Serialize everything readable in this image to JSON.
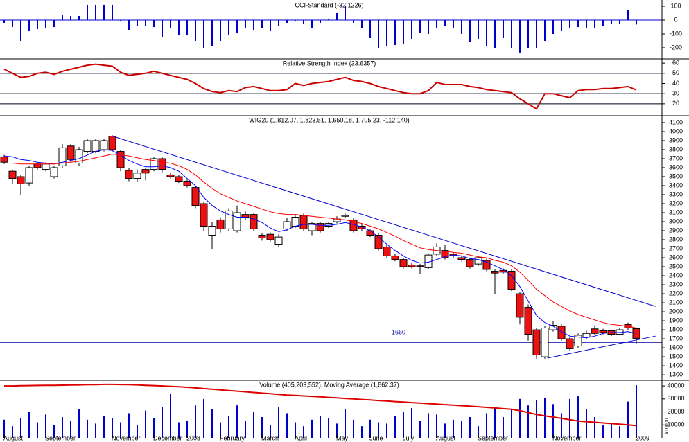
{
  "chart_data": [
    {
      "type": "bar",
      "title": "CCI-Standard (-32.1226)",
      "color": "#0000cc",
      "ylim": [
        -275,
        135
      ],
      "yticks": [
        -200,
        -100,
        0,
        100
      ],
      "values": [
        -20,
        -50,
        -150,
        -80,
        -65,
        -60,
        -50,
        40,
        30,
        30,
        110,
        110,
        110,
        110,
        -10,
        -70,
        -40,
        -40,
        -50,
        -120,
        -60,
        -110,
        -110,
        -150,
        -200,
        -190,
        -150,
        -110,
        -90,
        -60,
        -70,
        -60,
        -80,
        -40,
        -20,
        -10,
        -30,
        -60,
        -20,
        10,
        50,
        100,
        -20,
        -60,
        -130,
        -200,
        -190,
        -180,
        -170,
        -140,
        -90,
        -100,
        -60,
        -40,
        -60,
        -100,
        -160,
        -140,
        -190,
        -200,
        -130,
        -200,
        -240,
        -200,
        -200,
        -150,
        -100,
        -80,
        -60,
        -50,
        -60,
        -60,
        -40,
        -30,
        -30,
        70,
        -32.1226
      ]
    },
    {
      "type": "line",
      "title": "Relative Strength Index (33.6357)",
      "color": "#cc0000",
      "ylim": [
        9,
        63.5
      ],
      "yticks": [
        20,
        30,
        40,
        50,
        60
      ],
      "levels": [
        20,
        30,
        50
      ],
      "values": [
        54,
        50,
        46,
        47,
        50,
        51,
        49,
        52,
        54,
        56,
        58,
        59,
        58,
        57,
        51,
        48,
        49,
        50,
        52,
        50,
        48,
        46,
        44,
        40,
        35,
        32,
        31,
        33,
        32,
        36,
        37,
        35,
        33,
        33,
        34,
        40,
        38,
        40,
        41,
        42,
        44,
        46,
        43,
        42,
        40,
        37,
        35,
        33,
        31,
        30,
        30,
        33,
        41,
        39,
        39,
        39,
        37,
        36,
        34,
        33,
        32,
        31,
        25,
        20,
        15,
        30,
        30,
        28,
        26,
        33,
        34,
        34,
        35,
        35,
        36,
        37,
        33.6357
      ]
    },
    {
      "type": "candlestick",
      "title": "WIG20 (1,812.07, 1,823.51, 1,650.18, 1,705.23, -112.140)",
      "up_color": "#ffffff",
      "down_color": "#ee1111",
      "ylim": [
        1247,
        4169
      ],
      "yticks": [
        1300,
        1400,
        1500,
        1600,
        1700,
        1800,
        1900,
        2000,
        2100,
        2200,
        2300,
        2400,
        2500,
        2600,
        2700,
        2800,
        2900,
        3000,
        3100,
        3200,
        3300,
        3400,
        3500,
        3600,
        3700,
        3800,
        3900,
        4000,
        4100
      ],
      "open": [
        3720,
        3560,
        3500,
        3430,
        3640,
        3580,
        3500,
        3620,
        3840,
        3650,
        3780,
        3780,
        3800,
        3950,
        3780,
        3570,
        3480,
        3580,
        3580,
        3700,
        3520,
        3500,
        3450,
        3380,
        3200,
        2850,
        3020,
        2920,
        2900,
        3080,
        3080,
        2850,
        2860,
        2750,
        2920,
        2950,
        3070,
        2900,
        2980,
        2950,
        3000,
        3060,
        3020,
        2950,
        2900,
        2850,
        2720,
        2620,
        2580,
        2520,
        2510,
        2490,
        2640,
        2680,
        2640,
        2600,
        2580,
        2530,
        2570,
        2450,
        2460,
        2450,
        2200,
        2050,
        1800,
        1500,
        1800,
        1840,
        1700,
        1620,
        1720,
        1810,
        1790,
        1790,
        1750,
        1860,
        1812.07
      ],
      "high": [
        3740,
        3580,
        3520,
        3620,
        3660,
        3660,
        3620,
        3860,
        3860,
        3830,
        3920,
        3920,
        3920,
        3960,
        3800,
        3600,
        3580,
        3600,
        3720,
        3720,
        3540,
        3520,
        3470,
        3400,
        3220,
        3000,
        3050,
        3150,
        3180,
        3120,
        3100,
        2870,
        2880,
        2860,
        3040,
        3080,
        3090,
        3000,
        3000,
        3000,
        3060,
        3090,
        3040,
        2970,
        2920,
        2870,
        2740,
        2640,
        2600,
        2540,
        2530,
        2650,
        2760,
        2740,
        2660,
        2620,
        2600,
        2620,
        2590,
        2470,
        2480,
        2470,
        2220,
        2080,
        1820,
        1840,
        1900,
        1860,
        1720,
        1760,
        1790,
        1850,
        1810,
        1800,
        1820,
        1880,
        1823.51
      ],
      "low": [
        3640,
        3420,
        3300,
        3400,
        3580,
        3560,
        3480,
        3600,
        3660,
        3620,
        3760,
        3760,
        3780,
        3780,
        3560,
        3450,
        3440,
        3460,
        3560,
        3550,
        3480,
        3430,
        3380,
        3150,
        2900,
        2700,
        2880,
        2900,
        2880,
        3020,
        2900,
        2790,
        2780,
        2720,
        2900,
        2930,
        2900,
        2850,
        2880,
        2930,
        2980,
        3040,
        2880,
        2900,
        2830,
        2680,
        2600,
        2560,
        2480,
        2480,
        2420,
        2470,
        2620,
        2580,
        2600,
        2560,
        2480,
        2510,
        2450,
        2200,
        2420,
        2230,
        1860,
        1680,
        1480,
        1480,
        1780,
        1680,
        1570,
        1600,
        1700,
        1740,
        1750,
        1730,
        1740,
        1800,
        1650.18
      ],
      "close": [
        3660,
        3480,
        3420,
        3600,
        3600,
        3640,
        3600,
        3820,
        3690,
        3800,
        3900,
        3900,
        3900,
        3800,
        3600,
        3480,
        3540,
        3540,
        3700,
        3580,
        3500,
        3450,
        3400,
        3180,
        2950,
        2950,
        2920,
        3120,
        3100,
        3050,
        2920,
        2820,
        2800,
        2830,
        3000,
        3050,
        2920,
        2980,
        2900,
        2980,
        3030,
        3070,
        2900,
        2920,
        2850,
        2700,
        2620,
        2580,
        2500,
        2500,
        2500,
        2630,
        2720,
        2600,
        2620,
        2580,
        2500,
        2600,
        2470,
        2430,
        2440,
        2250,
        1940,
        1750,
        1520,
        1820,
        1850,
        1700,
        1590,
        1740,
        1760,
        1760,
        1770,
        1750,
        1800,
        1820,
        1705.23
      ],
      "lines": [
        {
          "color": "#0000ff",
          "values": [
            3730,
            3720,
            3690,
            3680,
            3660,
            3650,
            3640,
            3660,
            3680,
            3700,
            3740,
            3780,
            3800,
            3790,
            3740,
            3680,
            3640,
            3610,
            3610,
            3620,
            3600,
            3560,
            3480,
            3400,
            3270,
            3180,
            3120,
            3080,
            3050,
            3050,
            3030,
            2990,
            2930,
            2890,
            2910,
            2950,
            2970,
            2970,
            2960,
            2960,
            2970,
            2990,
            2970,
            2940,
            2900,
            2830,
            2750,
            2680,
            2620,
            2570,
            2540,
            2550,
            2580,
            2610,
            2630,
            2620,
            2590,
            2580,
            2550,
            2510,
            2470,
            2400,
            2280,
            2120,
            1960,
            1880,
            1840,
            1780,
            1730,
            1720,
            1710,
            1730,
            1760,
            1770,
            1770,
            1780,
            1760
          ]
        },
        {
          "color": "#ff0000",
          "values": [
            3650,
            3650,
            3640,
            3640,
            3640,
            3640,
            3640,
            3650,
            3660,
            3670,
            3690,
            3710,
            3730,
            3750,
            3740,
            3730,
            3710,
            3690,
            3680,
            3660,
            3650,
            3620,
            3580,
            3520,
            3440,
            3370,
            3310,
            3270,
            3230,
            3200,
            3170,
            3140,
            3110,
            3090,
            3080,
            3080,
            3070,
            3060,
            3050,
            3040,
            3030,
            3020,
            3000,
            2980,
            2950,
            2920,
            2880,
            2840,
            2790,
            2750,
            2710,
            2690,
            2680,
            2670,
            2660,
            2650,
            2630,
            2610,
            2600,
            2570,
            2550,
            2510,
            2440,
            2350,
            2250,
            2180,
            2110,
            2060,
            2010,
            1970,
            1940,
            1910,
            1880,
            1860,
            1850,
            1840,
            1820
          ]
        }
      ],
      "trendlines": [
        {
          "color": "#0000cc",
          "x": [
            13,
            78.3
          ],
          "values": [
            3950,
            2060
          ]
        },
        {
          "color": "#0000cc",
          "x": [
            65.3,
            78.3
          ],
          "values": [
            1485,
            1730
          ]
        }
      ],
      "hline": {
        "value": 1660,
        "color": "#0000aa"
      }
    },
    {
      "type": "bar",
      "title": "Volume (405,203,552), Moving Average (1,862.37)",
      "color": "#0000cc",
      "ylim": [
        0,
        43800
      ],
      "yticks": [
        10000,
        20000,
        30000,
        40000
      ],
      "ylabel": "x10000",
      "values": [
        14000,
        9000,
        15000,
        20000,
        12000,
        18000,
        10000,
        16000,
        13000,
        22000,
        14000,
        11000,
        17000,
        15000,
        12000,
        19000,
        10000,
        21000,
        15000,
        24000,
        34000,
        12000,
        13000,
        25000,
        30000,
        22000,
        12000,
        17000,
        25000,
        13000,
        20000,
        16000,
        10000,
        24000,
        19000,
        12000,
        9000,
        14000,
        17000,
        15000,
        11000,
        22000,
        14000,
        9000,
        14000,
        12000,
        11000,
        17000,
        20000,
        23000,
        13000,
        19000,
        18000,
        11000,
        14000,
        13000,
        16000,
        9000,
        19000,
        24000,
        16000,
        22000,
        30000,
        25000,
        29000,
        31000,
        26000,
        19000,
        30000,
        32000,
        22000,
        16000,
        10000,
        11000,
        9000,
        28000,
        40520
      ],
      "lines": [
        {
          "color": "#dd0000",
          "values": [
            40000,
            40000,
            40200,
            40300,
            40400,
            40500,
            40500,
            40600,
            40700,
            40800,
            41000,
            41000,
            41200,
            41200,
            41100,
            41000,
            40800,
            40500,
            40300,
            40000,
            39700,
            39400,
            39000,
            38500,
            38000,
            37500,
            37000,
            36500,
            36000,
            35500,
            35000,
            34500,
            34000,
            33500,
            33000,
            32700,
            32300,
            32000,
            31600,
            31200,
            30800,
            30400,
            30000,
            29600,
            29200,
            28800,
            28400,
            28000,
            27600,
            27200,
            26800,
            26400,
            26000,
            25600,
            25200,
            24800,
            24400,
            24000,
            23500,
            23000,
            22500,
            22000,
            21000,
            19500,
            18000,
            17000,
            16000,
            15000,
            14000,
            13000,
            12500,
            12000,
            11500,
            11000,
            10500,
            10000,
            9500
          ]
        }
      ],
      "categories": [
        "August",
        null,
        null,
        null,
        null,
        "September",
        null,
        null,
        null,
        null,
        null,
        null,
        null,
        "November",
        null,
        null,
        null,
        null,
        "December",
        null,
        null,
        null,
        "2008",
        null,
        null,
        null,
        "February",
        null,
        null,
        null,
        null,
        "March",
        null,
        null,
        null,
        "April",
        null,
        null,
        null,
        null,
        "May",
        null,
        null,
        null,
        "June",
        null,
        null,
        null,
        "July",
        null,
        null,
        null,
        "August",
        null,
        null,
        null,
        null,
        "September",
        null,
        null,
        null,
        null,
        null,
        null,
        null,
        null,
        "November",
        null,
        null,
        null,
        null,
        null,
        null,
        null,
        null,
        null,
        "2009"
      ]
    }
  ]
}
